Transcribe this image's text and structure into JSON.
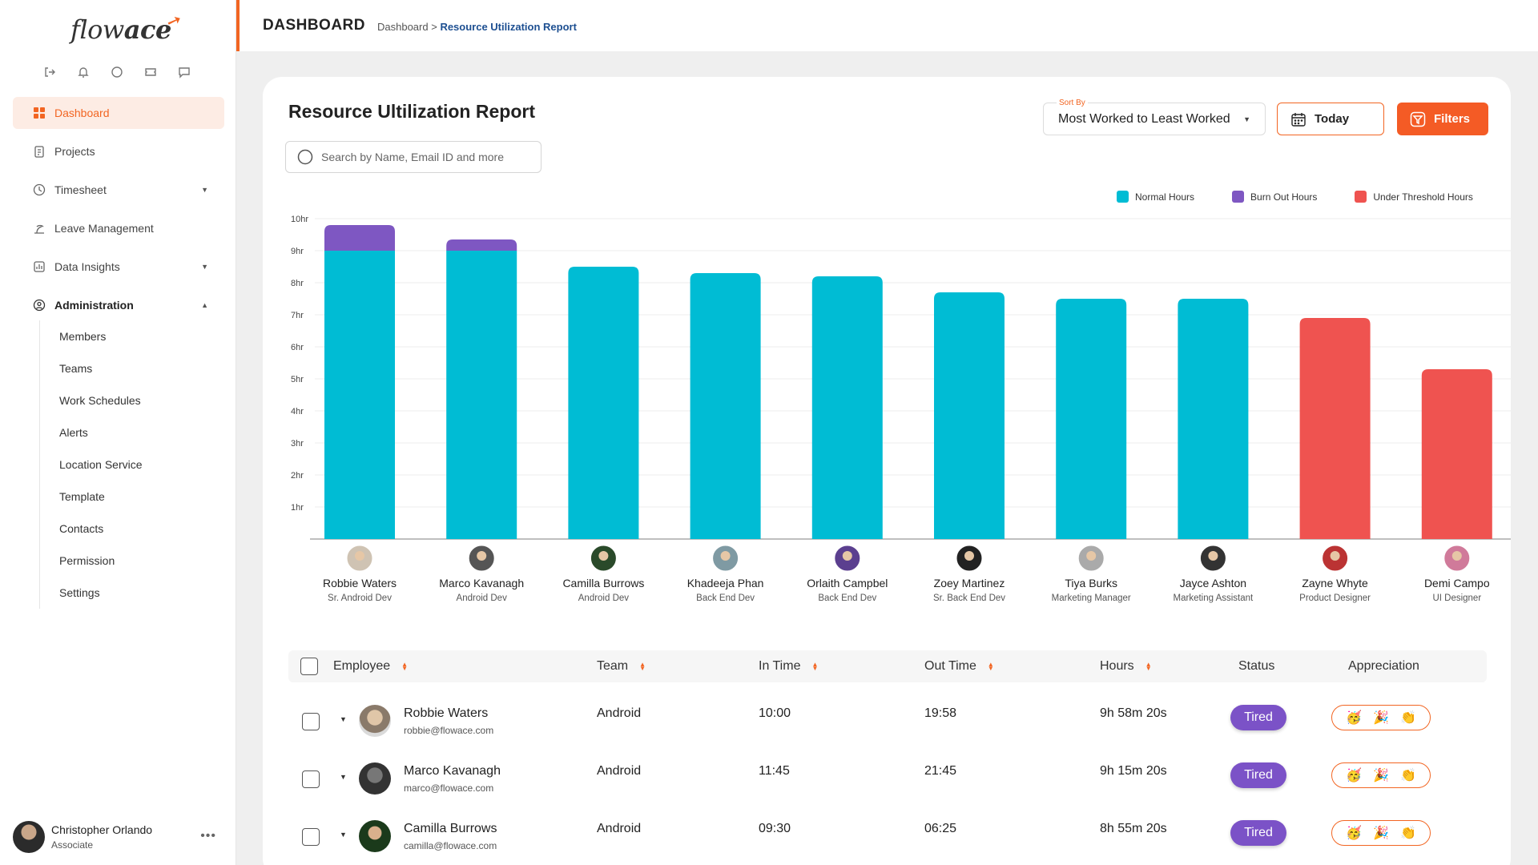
{
  "app": {
    "logo_text_light": "flow",
    "logo_text_bold": "ace"
  },
  "header": {
    "title": "DASHBOARD",
    "crumb_root": "Dashboard",
    "crumb_sep": " > ",
    "crumb_current": "Resource Utilization Report"
  },
  "sidebar": {
    "items": [
      {
        "label": "Dashboard",
        "icon": "grid-icon"
      },
      {
        "label": "Projects",
        "icon": "clipboard-icon"
      },
      {
        "label": "Timesheet",
        "icon": "clock-icon"
      },
      {
        "label": "Leave Management",
        "icon": "beach-icon"
      },
      {
        "label": "Data Insights",
        "icon": "chart-icon"
      },
      {
        "label": "Administration",
        "icon": "admin-icon"
      }
    ],
    "subitems": [
      "Members",
      "Teams",
      "Work Schedules",
      "Alerts",
      "Location Service",
      "Template",
      "Contacts",
      "Permission",
      "Settings"
    ],
    "user": {
      "name": "Christopher Orlando",
      "role": "Associate",
      "more": "•••"
    }
  },
  "report": {
    "title": "Resource Ultilization Report",
    "search_placeholder": "Search by Name, Email ID and more",
    "sort_label": "Sort By",
    "sort_value": "Most Worked to Least Worked",
    "today_label": "Today",
    "filters_label": "Filters"
  },
  "colors": {
    "normal": "#00bcd4",
    "burnout": "#7e57c2",
    "under": "#ef5350",
    "accent": "#f26522"
  },
  "chart_data": {
    "type": "bar",
    "stacked": true,
    "ylim": [
      0,
      10
    ],
    "yticks": [
      "10hr",
      "9hr",
      "8hr",
      "7hr",
      "6hr",
      "5hr",
      "4hr",
      "3hr",
      "2hr",
      "1hr"
    ],
    "legend": [
      "Normal Hours",
      "Burn Out Hours",
      "Under Threshold Hours"
    ],
    "employees": [
      {
        "name": "Robbie Waters",
        "role": "Sr. Android Dev",
        "normal": 9.0,
        "burnout": 0.8,
        "under": 0
      },
      {
        "name": "Marco Kavanagh",
        "role": "Android Dev",
        "normal": 9.0,
        "burnout": 0.35,
        "under": 0
      },
      {
        "name": "Camilla Burrows",
        "role": "Android Dev",
        "normal": 8.5,
        "burnout": 0,
        "under": 0
      },
      {
        "name": "Khadeeja Phan",
        "role": "Back End Dev",
        "normal": 8.3,
        "burnout": 0,
        "under": 0
      },
      {
        "name": "Orlaith Campbel",
        "role": "Back End Dev",
        "normal": 8.2,
        "burnout": 0,
        "under": 0
      },
      {
        "name": "Zoey Martinez",
        "role": "Sr. Back End Dev",
        "normal": 7.7,
        "burnout": 0,
        "under": 0
      },
      {
        "name": "Tiya Burks",
        "role": "Marketing Manager",
        "normal": 7.5,
        "burnout": 0,
        "under": 0
      },
      {
        "name": "Jayce Ashton",
        "role": "Marketing Assistant",
        "normal": 7.5,
        "burnout": 0,
        "under": 0
      },
      {
        "name": "Zayne Whyte",
        "role": "Product Designer",
        "normal": 0,
        "burnout": 0,
        "under": 6.9
      },
      {
        "name": "Demi Campo",
        "role": "UI Designer",
        "normal": 0,
        "burnout": 0,
        "under": 5.3
      }
    ]
  },
  "table": {
    "columns": [
      "Employee",
      "Team",
      "In Time",
      "Out Time",
      "Hours",
      "Status",
      "Appreciation"
    ],
    "rows": [
      {
        "name": "Robbie Waters",
        "email": "robbie@flowace.com",
        "team": "Android",
        "in": "10:00",
        "out": "19:58",
        "hours": "9h 58m 20s",
        "status": "Tired"
      },
      {
        "name": "Marco Kavanagh",
        "email": "marco@flowace.com",
        "team": "Android",
        "in": "11:45",
        "out": "21:45",
        "hours": "9h 15m 20s",
        "status": "Tired"
      },
      {
        "name": "Camilla Burrows",
        "email": "camilla@flowace.com",
        "team": "Android",
        "in": "09:30",
        "out": "06:25",
        "hours": "8h 55m 20s",
        "status": "Tired"
      }
    ],
    "appreciation_emojis": [
      "🥳",
      "🎉",
      "👏"
    ]
  }
}
